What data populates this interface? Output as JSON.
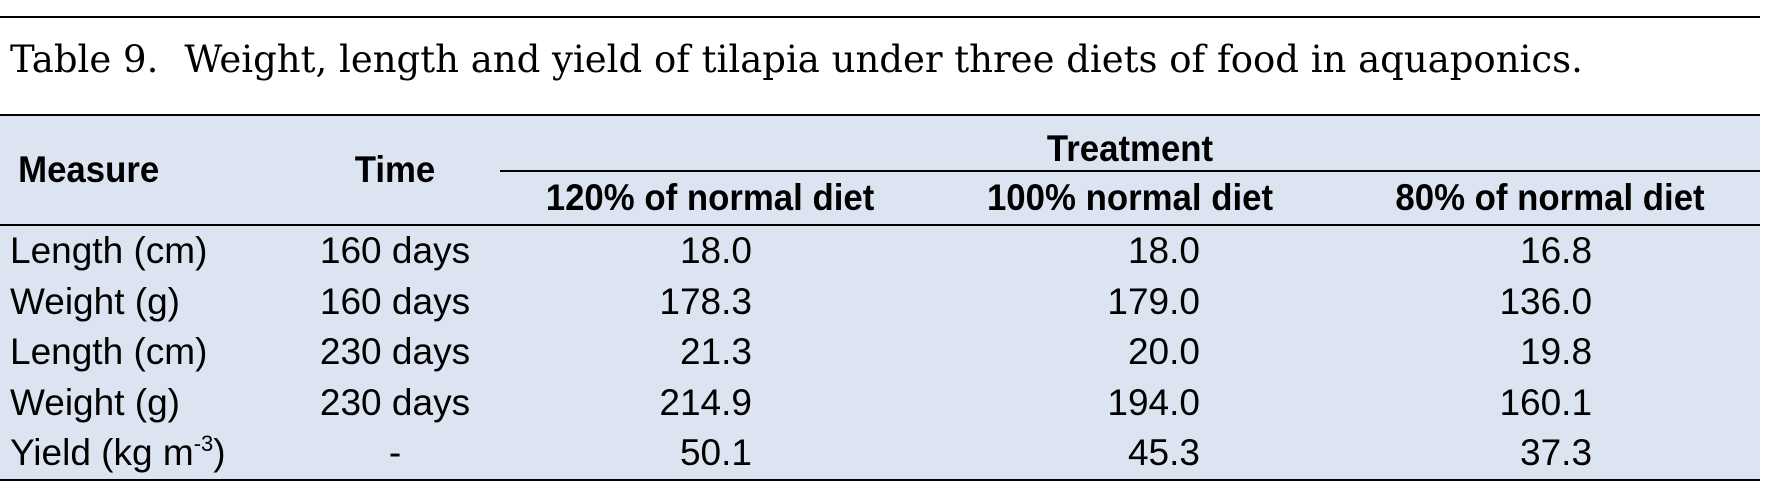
{
  "caption": {
    "label": "Table 9.",
    "text": "Weight, length and yield of tilapia under three diets of food in aquaponics."
  },
  "table": {
    "header": {
      "measure": "Measure",
      "time": "Time",
      "group": "Treatment",
      "columns": [
        "120% of normal diet",
        "100% normal diet",
        "80% of normal diet"
      ]
    },
    "rows": [
      {
        "measure": "Length (cm)",
        "time": "160 days",
        "values": [
          "18.0",
          "18.0",
          "16.8"
        ]
      },
      {
        "measure": "Weight (g)",
        "time": "160 days",
        "values": [
          "178.3",
          "179.0",
          "136.0"
        ]
      },
      {
        "measure": "Length (cm)",
        "time": "230 days",
        "values": [
          "21.3",
          "20.0",
          "19.8"
        ]
      },
      {
        "measure": "Weight (g)",
        "time": "230 days",
        "values": [
          "214.9",
          "194.0",
          "160.1"
        ]
      },
      {
        "measure": "Yield (kg m",
        "measure_sup": "-3",
        "measure_tail": ")",
        "time": "-",
        "values": [
          "50.1",
          "45.3",
          "37.3"
        ]
      }
    ]
  }
}
